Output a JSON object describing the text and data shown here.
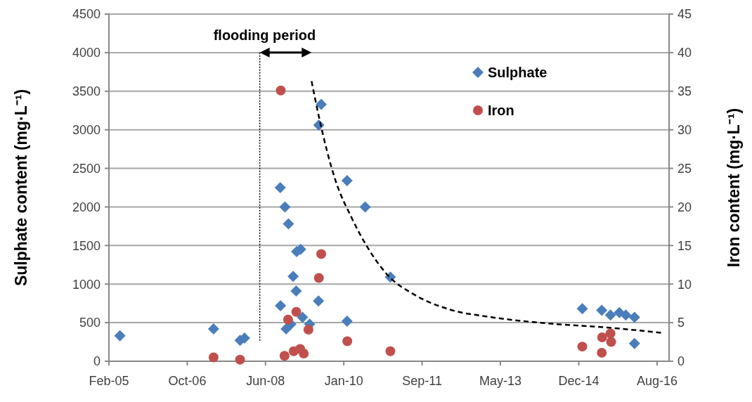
{
  "chart_data": {
    "type": "scatter",
    "ylabel": "Sulphate content (mg·L⁻¹)",
    "y2label": "Iron content (mg·L⁻¹)",
    "annotations": [
      "flooding period"
    ],
    "xlim": [
      "2005-02-20",
      "2016-11-22"
    ],
    "xticks": [
      {
        "value": "2005-02-20",
        "label": "Feb-05"
      },
      {
        "value": "2006-10-13",
        "label": "Oct-06"
      },
      {
        "value": "2008-06-04",
        "label": "Jun-08"
      },
      {
        "value": "2010-01-25",
        "label": "Jan-10"
      },
      {
        "value": "2011-09-17",
        "label": "Sep-11"
      },
      {
        "value": "2013-05-09",
        "label": "May-13"
      },
      {
        "value": "2014-12-31",
        "label": "Dec-14"
      },
      {
        "value": "2016-08-22",
        "label": "Aug-16"
      }
    ],
    "ylim": [
      0,
      4500
    ],
    "yticks": [
      0,
      500,
      1000,
      1500,
      2000,
      2500,
      3000,
      3500,
      4000,
      4500
    ],
    "y2lim": [
      0,
      45
    ],
    "y2ticks": [
      0,
      5,
      10,
      15,
      20,
      25,
      30,
      35,
      40,
      45
    ],
    "grid": "y",
    "legend": "top right",
    "ref_lines": [
      {
        "axis": "x",
        "value": "2008-04-21",
        "line_style": "dotted",
        "color": "#000000"
      }
    ],
    "series": [
      {
        "name": "Sulphate",
        "color": "#4a7ebb",
        "marker": "diamond",
        "x": [
          "2005-05-15",
          "2007-05-03",
          "2007-11-22",
          "2007-12-26",
          "2008-09-25",
          "2008-10-31",
          "2008-11-27",
          "2009-01-29",
          "2009-02-28",
          "2009-01-02",
          "2009-01-25",
          "2008-09-27",
          "2009-07-15",
          "2009-08-05",
          "2009-07-18",
          "2010-02-19",
          "2010-07-08",
          "2010-02-19",
          "2011-01-17",
          "2008-11-09",
          "2008-12-15",
          "2009-03-15",
          "2009-05-08",
          "2015-01-27",
          "2015-06-25",
          "2015-08-31",
          "2015-11-07",
          "2015-12-26",
          "2016-03-02",
          "2016-03-02"
        ],
        "values": [
          330,
          420,
          270,
          300,
          2250,
          2000,
          1780,
          1420,
          1450,
          1100,
          910,
          720,
          780,
          3330,
          3060,
          2340,
          2000,
          520,
          1090,
          420,
          480,
          570,
          480,
          680,
          660,
          600,
          630,
          600,
          570,
          230
        ]
      },
      {
        "name": "Iron",
        "color": "#c0504d",
        "marker": "circle",
        "axis": "y2",
        "x": [
          "2008-09-29",
          "2009-08-05",
          "2009-07-18",
          "2007-05-03",
          "2007-11-22",
          "2010-02-21",
          "2011-01-17",
          "2009-01-26",
          "2008-11-24",
          "2009-04-29",
          "2008-10-28",
          "2009-01-06",
          "2009-02-25",
          "2009-03-24",
          "2015-01-27",
          "2015-06-25",
          "2015-06-28",
          "2015-08-31",
          "2015-09-05"
        ],
        "values": [
          35.1,
          13.9,
          10.8,
          0.5,
          0.2,
          2.6,
          1.3,
          6.4,
          5.4,
          4.1,
          0.7,
          1.3,
          1.6,
          1.0,
          1.9,
          1.1,
          3.1,
          3.6,
          2.5
        ]
      },
      {
        "type": "line",
        "color": "#000000",
        "line_style": "dashed",
        "marker": "none",
        "x": [
          "2009-05-23",
          "2009-07-17",
          "2009-09-19",
          "2009-11-23",
          "2010-03-26",
          "2010-07-28",
          "2010-12-20",
          "2011-07-23",
          "2012-04-17",
          "2013-03-07",
          "2014-05-12",
          "2015-07-16",
          "2016-09-21"
        ],
        "values": [
          3630,
          3180,
          2720,
          2340,
          1860,
          1470,
          1130,
          860,
          670,
          570,
          490,
          440,
          370
        ]
      }
    ]
  }
}
